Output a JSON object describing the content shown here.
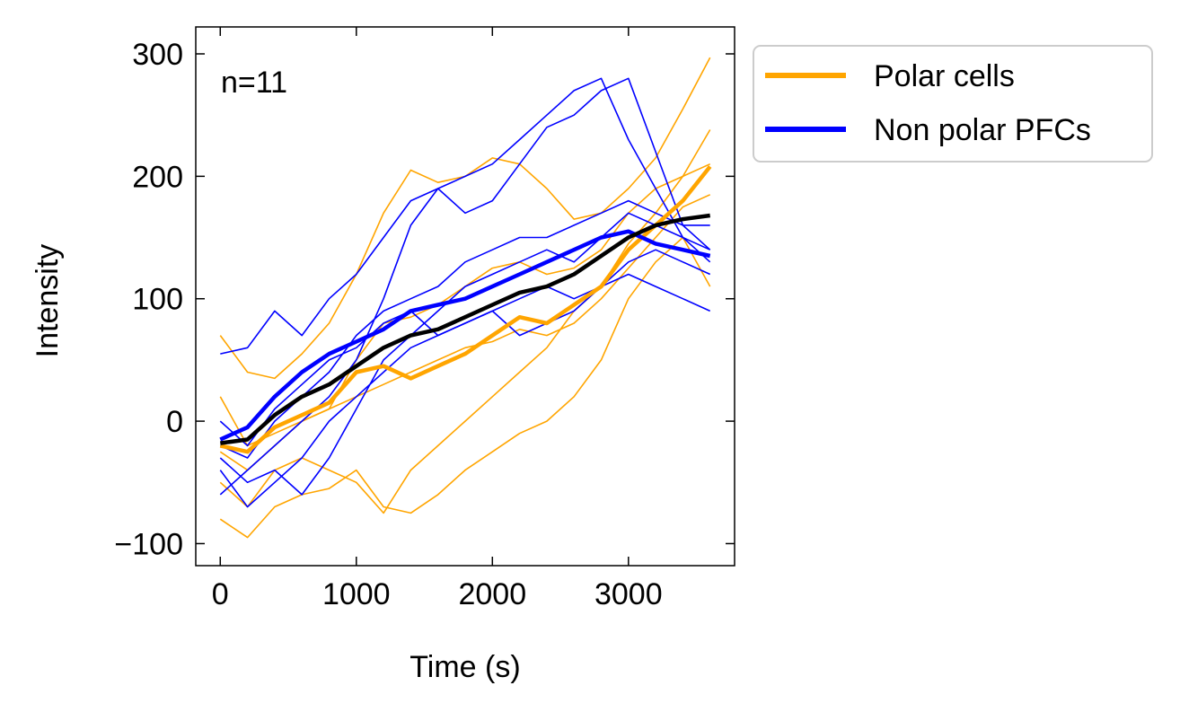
{
  "chart_data": {
    "type": "line",
    "title": "",
    "xlabel": "Time (s)",
    "ylabel": "Intensity",
    "xlim": [
      -180,
      3780
    ],
    "ylim": [
      -118,
      322
    ],
    "xticks": [
      0,
      1000,
      2000,
      3000
    ],
    "yticks": [
      -100,
      0,
      100,
      200,
      300
    ],
    "xtick_labels": [
      "0",
      "1000",
      "2000",
      "3000"
    ],
    "ytick_labels": [
      "−100",
      "0",
      "100",
      "200",
      "300"
    ],
    "grid": false,
    "legend_position": "outside-top-right",
    "annotation": "n=11",
    "colors": {
      "polar": "#FFA500",
      "nonpolar": "#0000FF",
      "overall_mean": "#000000"
    },
    "legend": [
      {
        "label": "Polar cells",
        "color": "#FFA500"
      },
      {
        "label": "Non polar PFCs",
        "color": "#0000FF"
      }
    ],
    "series": [
      {
        "name": "Polar cells",
        "group": "polar",
        "role": "mean",
        "color": "#FFA500",
        "x": [
          0,
          200,
          400,
          600,
          800,
          1000,
          1200,
          1400,
          1600,
          1800,
          2000,
          2200,
          2400,
          2600,
          2800,
          3000,
          3200,
          3400,
          3600
        ],
        "y": [
          -20,
          -25,
          -5,
          5,
          15,
          40,
          45,
          35,
          45,
          55,
          70,
          85,
          80,
          95,
          110,
          140,
          160,
          180,
          208
        ]
      },
      {
        "name": "Non polar PFCs",
        "group": "nonpolar",
        "role": "mean",
        "color": "#0000FF",
        "x": [
          0,
          200,
          400,
          600,
          800,
          1000,
          1200,
          1400,
          1600,
          1800,
          2000,
          2200,
          2400,
          2600,
          2800,
          3000,
          3200,
          3400,
          3600
        ],
        "y": [
          -15,
          -5,
          20,
          40,
          55,
          65,
          75,
          90,
          95,
          100,
          110,
          120,
          130,
          140,
          150,
          155,
          145,
          140,
          135
        ]
      },
      {
        "role": "overall-mean",
        "color": "#000000",
        "x": [
          0,
          200,
          400,
          600,
          800,
          1000,
          1200,
          1400,
          1600,
          1800,
          2000,
          2200,
          2400,
          2600,
          2800,
          3000,
          3200,
          3400,
          3600
        ],
        "y": [
          -18,
          -15,
          5,
          20,
          30,
          45,
          60,
          70,
          75,
          85,
          95,
          105,
          110,
          120,
          135,
          150,
          160,
          165,
          168
        ]
      },
      {
        "group": "polar",
        "role": "individual",
        "color": "#FFA500",
        "x": [
          0,
          200,
          400,
          600,
          800,
          1000,
          1200,
          1400,
          1600,
          1800,
          2000,
          2200,
          2400,
          2600,
          2800,
          3000,
          3200,
          3400,
          3600
        ],
        "y": [
          70,
          40,
          35,
          55,
          80,
          120,
          170,
          205,
          195,
          200,
          215,
          210,
          190,
          165,
          170,
          190,
          215,
          255,
          297
        ]
      },
      {
        "group": "polar",
        "role": "individual",
        "color": "#FFA500",
        "x": [
          0,
          200,
          400,
          600,
          800,
          1000,
          1200,
          1400,
          1600,
          1800,
          2000,
          2200,
          2400,
          2600,
          2800,
          3000,
          3200,
          3400,
          3600
        ],
        "y": [
          -80,
          -95,
          -70,
          -60,
          -55,
          -40,
          -70,
          -75,
          -60,
          -40,
          -25,
          -10,
          0,
          20,
          50,
          100,
          130,
          150,
          110
        ]
      },
      {
        "group": "polar",
        "role": "individual",
        "color": "#FFA500",
        "x": [
          0,
          200,
          400,
          600,
          800,
          1000,
          1200,
          1400,
          1600,
          1800,
          2000,
          2200,
          2400,
          2600,
          2800,
          3000,
          3200,
          3400,
          3600
        ],
        "y": [
          -50,
          -70,
          -40,
          -30,
          -40,
          -50,
          -75,
          -40,
          -20,
          0,
          20,
          40,
          60,
          90,
          110,
          145,
          170,
          200,
          238
        ]
      },
      {
        "group": "polar",
        "role": "individual",
        "color": "#FFA500",
        "x": [
          0,
          200,
          400,
          600,
          800,
          1000,
          1200,
          1400,
          1600,
          1800,
          2000,
          2200,
          2400,
          2600,
          2800,
          3000,
          3200,
          3400,
          3600
        ],
        "y": [
          20,
          -20,
          -10,
          0,
          10,
          50,
          80,
          85,
          95,
          110,
          125,
          130,
          120,
          125,
          140,
          170,
          190,
          200,
          210
        ]
      },
      {
        "group": "polar",
        "role": "individual",
        "color": "#FFA500",
        "x": [
          0,
          200,
          400,
          600,
          800,
          1000,
          1200,
          1400,
          1600,
          1800,
          2000,
          2200,
          2400,
          2600,
          2800,
          3000,
          3200,
          3400,
          3600
        ],
        "y": [
          -25,
          -40,
          -20,
          0,
          10,
          20,
          30,
          40,
          50,
          60,
          65,
          75,
          70,
          80,
          100,
          125,
          150,
          175,
          185
        ]
      },
      {
        "group": "nonpolar",
        "role": "individual",
        "color": "#0000FF",
        "x": [
          0,
          200,
          400,
          600,
          800,
          1000,
          1200,
          1400,
          1600,
          1800,
          2000,
          2200,
          2400,
          2600,
          2800,
          3000,
          3200,
          3400,
          3600
        ],
        "y": [
          55,
          60,
          90,
          70,
          100,
          120,
          150,
          180,
          190,
          200,
          210,
          230,
          250,
          270,
          280,
          230,
          190,
          150,
          130
        ]
      },
      {
        "group": "nonpolar",
        "role": "individual",
        "color": "#0000FF",
        "x": [
          0,
          200,
          400,
          600,
          800,
          1000,
          1200,
          1400,
          1600,
          1800,
          2000,
          2200,
          2400,
          2600,
          2800,
          3000,
          3200,
          3400,
          3600
        ],
        "y": [
          -60,
          -40,
          -20,
          0,
          20,
          50,
          100,
          160,
          190,
          170,
          180,
          210,
          240,
          250,
          270,
          280,
          220,
          160,
          140
        ]
      },
      {
        "group": "nonpolar",
        "role": "individual",
        "color": "#0000FF",
        "x": [
          0,
          200,
          400,
          600,
          800,
          1000,
          1200,
          1400,
          1600,
          1800,
          2000,
          2200,
          2400,
          2600,
          2800,
          3000,
          3200,
          3400,
          3600
        ],
        "y": [
          -40,
          -70,
          -50,
          -30,
          0,
          20,
          40,
          60,
          70,
          80,
          90,
          100,
          110,
          100,
          110,
          130,
          140,
          130,
          120
        ]
      },
      {
        "group": "nonpolar",
        "role": "individual",
        "color": "#0000FF",
        "x": [
          0,
          200,
          400,
          600,
          800,
          1000,
          1200,
          1400,
          1600,
          1800,
          2000,
          2200,
          2400,
          2600,
          2800,
          3000,
          3200,
          3400,
          3600
        ],
        "y": [
          0,
          -20,
          10,
          30,
          50,
          60,
          80,
          90,
          70,
          80,
          90,
          70,
          80,
          90,
          110,
          120,
          110,
          100,
          90
        ]
      },
      {
        "group": "nonpolar",
        "role": "individual",
        "color": "#0000FF",
        "x": [
          0,
          200,
          400,
          600,
          800,
          1000,
          1200,
          1400,
          1600,
          1800,
          2000,
          2200,
          2400,
          2600,
          2800,
          3000,
          3200,
          3400,
          3600
        ],
        "y": [
          -30,
          -50,
          -40,
          -60,
          -30,
          10,
          50,
          70,
          90,
          110,
          120,
          130,
          140,
          130,
          150,
          170,
          160,
          150,
          140
        ]
      },
      {
        "group": "nonpolar",
        "role": "individual",
        "color": "#0000FF",
        "x": [
          0,
          200,
          400,
          600,
          800,
          1000,
          1200,
          1400,
          1600,
          1800,
          2000,
          2200,
          2400,
          2600,
          2800,
          3000,
          3200,
          3400,
          3600
        ],
        "y": [
          -20,
          -30,
          0,
          20,
          40,
          70,
          90,
          100,
          110,
          130,
          140,
          150,
          150,
          160,
          170,
          180,
          170,
          160,
          160
        ]
      }
    ]
  }
}
